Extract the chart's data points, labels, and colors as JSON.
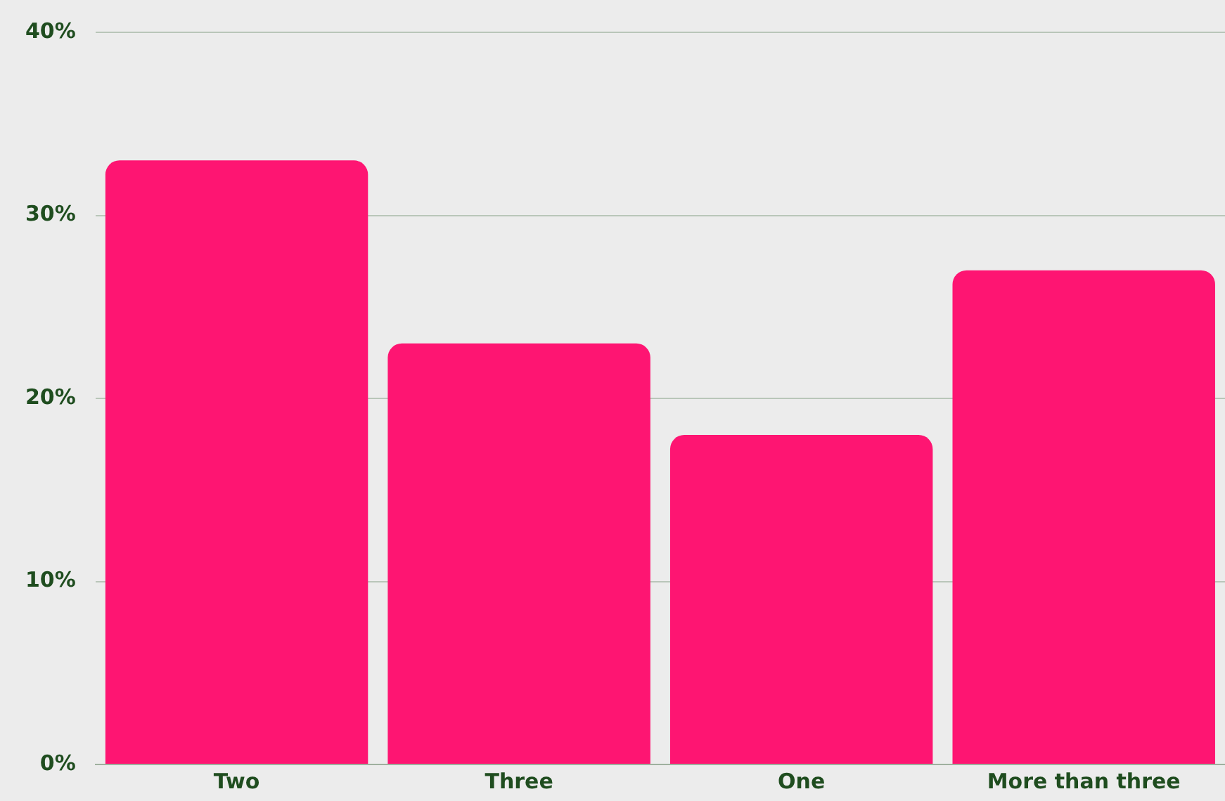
{
  "chart_data": {
    "type": "bar",
    "categories": [
      "Two",
      "Three",
      "One",
      "More than three"
    ],
    "values": [
      33,
      23,
      18,
      27
    ],
    "color": "#fe1572",
    "ylim": [
      0,
      40
    ],
    "yticks": [
      {
        "value": 0,
        "label": "0%"
      },
      {
        "value": 10,
        "label": "10%"
      },
      {
        "value": 20,
        "label": "20%"
      },
      {
        "value": 30,
        "label": "30%"
      },
      {
        "value": 40,
        "label": "40%"
      }
    ],
    "grid": "y"
  }
}
